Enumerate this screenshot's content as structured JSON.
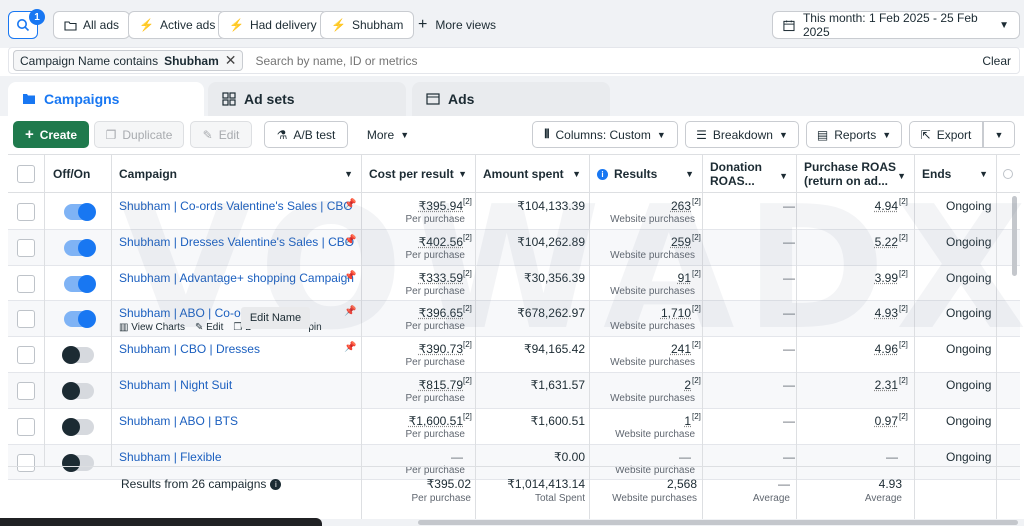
{
  "toolbar_top": {
    "search_badge": "1",
    "views": [
      "All ads",
      "Active ads",
      "Had delivery",
      "Shubham"
    ],
    "more_views": "More views",
    "date_range": "This month: 1 Feb 2025 - 25 Feb 2025"
  },
  "filter": {
    "chip_prefix": "Campaign Name contains",
    "chip_value": "Shubham",
    "placeholder": "Search by name, ID or metrics",
    "clear": "Clear"
  },
  "tabs": [
    "Campaigns",
    "Ad sets",
    "Ads"
  ],
  "actions": {
    "create": "Create",
    "duplicate": "Duplicate",
    "edit": "Edit",
    "ab_test": "A/B test",
    "more": "More",
    "columns": "Columns: Custom",
    "breakdown": "Breakdown",
    "reports": "Reports",
    "export": "Export"
  },
  "headers": {
    "off_on": "Off/On",
    "campaign": "Campaign",
    "cost_per_result": "Cost per result",
    "amount_spent": "Amount spent",
    "results": "Results",
    "donation_roas_1": "Donation",
    "donation_roas_2": "ROAS...",
    "purchase_roas_1": "Purchase ROAS",
    "purchase_roas_2": "(return on ad...",
    "ends": "Ends"
  },
  "rows": [
    {
      "name": "Shubham | Co-ords Valentine's Sales | CBO",
      "on": true,
      "cpr": "₹395.94",
      "cpr_sub": "Per purchase",
      "spent": "₹104,133.39",
      "results": "263",
      "results_sub": "Website purchases",
      "donation": "—",
      "roas": "4.94",
      "ends": "Ongoing"
    },
    {
      "name": "Shubham | Dresses Valentine's Sales | CBO",
      "on": true,
      "cpr": "₹402.56",
      "cpr_sub": "Per purchase",
      "spent": "₹104,262.89",
      "results": "259",
      "results_sub": "Website purchases",
      "donation": "—",
      "roas": "5.22",
      "ends": "Ongoing"
    },
    {
      "name": "Shubham | Advantage+ shopping Campaign",
      "on": true,
      "cpr": "₹333.59",
      "cpr_sub": "Per purchase",
      "spent": "₹30,356.39",
      "results": "91",
      "results_sub": "Website purchases",
      "donation": "—",
      "roas": "3.99",
      "ends": "Ongoing"
    },
    {
      "name": "Shubham | ABO | Co-ords",
      "on": true,
      "cpr": "₹396.65",
      "cpr_sub": "Per purchase",
      "spent": "₹678,262.97",
      "results": "1,710",
      "results_sub": "Website purchases",
      "donation": "—",
      "roas": "4.93",
      "ends": "Ongoing"
    },
    {
      "name": "Shubham | CBO | Dresses",
      "on": false,
      "cpr": "₹390.73",
      "cpr_sub": "Per purchase",
      "spent": "₹94,165.42",
      "results": "241",
      "results_sub": "Website purchases",
      "donation": "—",
      "roas": "4.96",
      "ends": "Ongoing"
    },
    {
      "name": "Shubham | Night Suit",
      "on": false,
      "cpr": "₹815.79",
      "cpr_sub": "Per purchase",
      "spent": "₹1,631.57",
      "results": "2",
      "results_sub": "Website purchases",
      "donation": "—",
      "roas": "2.31",
      "ends": "Ongoing"
    },
    {
      "name": "Shubham | ABO | BTS",
      "on": false,
      "cpr": "₹1,600.51",
      "cpr_sub": "Per purchase",
      "spent": "₹1,600.51",
      "results": "1",
      "results_sub": "Website purchase",
      "donation": "—",
      "roas": "0.97",
      "ends": "Ongoing"
    },
    {
      "name": "Shubham | Flexible",
      "on": false,
      "cpr": "—",
      "cpr_sub": "Per purchase",
      "spent": "₹0.00",
      "results": "—",
      "results_sub": "Website purchase",
      "donation": "—",
      "roas": "—",
      "ends": "Ongoing"
    }
  ],
  "hover_row": {
    "view_charts": "View Charts",
    "edit": "Edit",
    "duplicate_partial": "D",
    "pin_partial": "pin",
    "tooltip": "Edit Name"
  },
  "summary": {
    "label": "Results from 26 campaigns",
    "cpr": "₹395.02",
    "cpr_sub": "Per purchase",
    "spent": "₹1,014,413.14",
    "spent_sub": "Total Spent",
    "results": "2,568",
    "results_sub": "Website purchases",
    "donation": "—",
    "donation_sub": "Average",
    "roas": "4.93",
    "roas_sub": "Average"
  },
  "colors": {
    "accent": "#1877f2",
    "create_green": "#1f7a4d",
    "link": "#1b5fbf"
  }
}
